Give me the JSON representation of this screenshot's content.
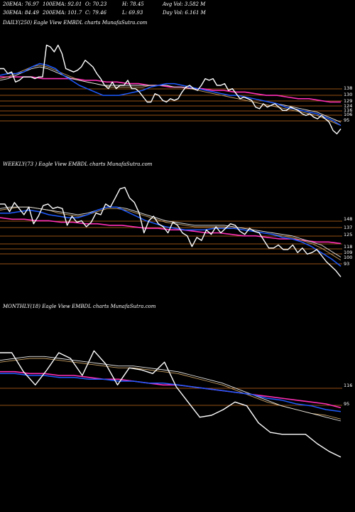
{
  "header": {
    "row1": [
      "20EMA: 76.97",
      "100EMA: 92.01",
      "O: 70.23",
      "H: 78.45",
      "Avg Vol: 3.582  M"
    ],
    "row2": [
      "30EMA: 84.49",
      "200EMA: 101.7",
      "C: 79.46",
      "L: 69.93",
      "Day Vol: 6.161  M"
    ]
  },
  "colors": {
    "background": "#000000",
    "price": "#ffffff",
    "ema_fast": "#1e5bff",
    "ema_slow": "#ff2fb5",
    "ema_gold": "#c8a064",
    "ema_white": "#e8e8e8",
    "level_line": "#c66a1c"
  },
  "chart_data": [
    {
      "type": "line",
      "title": "DAILY(250)  Eagle   View  EMBDL  charts MunafaSutra.com",
      "y_ticks": [
        "138",
        "130",
        "129",
        "124",
        "116",
        "106",
        "95"
      ],
      "series": [
        {
          "role": "price",
          "values": [
            136,
            136,
            133,
            134,
            128,
            129,
            131,
            131,
            131,
            130,
            131,
            131,
            150,
            149,
            146,
            150,
            145,
            136,
            135,
            134,
            135,
            137,
            141,
            139,
            137,
            133,
            130,
            126,
            124,
            128,
            124,
            126,
            126,
            129,
            124,
            124,
            122,
            119,
            116,
            116,
            121,
            120,
            117,
            116,
            118,
            117,
            118,
            122,
            125,
            126,
            124,
            123,
            126,
            130,
            129,
            130,
            126,
            126,
            127,
            123,
            124,
            121,
            118,
            119,
            118,
            117,
            113,
            112,
            115,
            113,
            114,
            115,
            113,
            111,
            111,
            113,
            112,
            111,
            109,
            108,
            109,
            107,
            106,
            108,
            106,
            104,
            99,
            97,
            100
          ]
        },
        {
          "role": "ema_fast",
          "values": [
            132,
            133,
            133,
            134,
            137,
            139,
            138,
            136,
            132,
            129,
            126,
            124,
            122,
            120,
            120,
            120,
            121,
            122,
            123,
            125,
            126,
            127,
            127,
            126,
            125,
            124,
            123,
            122,
            121,
            120,
            120,
            119,
            118,
            117,
            116,
            115,
            113,
            112,
            111,
            110,
            109,
            107,
            105,
            102
          ]
        },
        {
          "role": "ema_slow",
          "values": [
            131,
            131,
            131,
            131,
            130,
            130,
            130,
            130,
            129,
            129,
            128,
            128,
            127,
            127,
            126,
            126,
            125,
            125,
            124,
            124,
            123,
            123,
            122,
            122,
            121,
            120,
            120,
            119,
            118,
            118,
            117,
            116,
            116
          ]
        },
        {
          "role": "ema_gold",
          "values": [
            130,
            131,
            133,
            135,
            137,
            138,
            137,
            135,
            133,
            131,
            129,
            128,
            127,
            126,
            125,
            125,
            125,
            125,
            125,
            126,
            126,
            126,
            125,
            125,
            124,
            123,
            122,
            121,
            120,
            119,
            118,
            117,
            116,
            115,
            114,
            113,
            112,
            111,
            110,
            109,
            108,
            106,
            104,
            102
          ]
        },
        {
          "role": "ema_white",
          "values": [
            129,
            130,
            132,
            134,
            136,
            137,
            136,
            134,
            132,
            130,
            129,
            128,
            127,
            126,
            126,
            126,
            126,
            126,
            126,
            126,
            126,
            126,
            125,
            125,
            124,
            124,
            123,
            122,
            121,
            120,
            120,
            119,
            118,
            117,
            116,
            115,
            114,
            113,
            112,
            111,
            110,
            108,
            106,
            104
          ]
        }
      ]
    },
    {
      "type": "line",
      "title": "WEEKLY(73                              )  Eagle   View  EMBDL  charts MunafaSutra.com",
      "y_ticks": [
        "148",
        "137",
        "125",
        "118",
        "109",
        "100",
        "93"
      ],
      "series": [
        {
          "role": "price",
          "values": [
            133,
            133,
            128,
            134,
            130,
            126,
            131,
            120,
            125,
            132,
            133,
            130,
            131,
            130,
            119,
            125,
            121,
            122,
            118,
            121,
            127,
            126,
            133,
            131,
            137,
            143,
            144,
            137,
            134,
            127,
            114,
            122,
            125,
            120,
            118,
            114,
            121,
            119,
            114,
            112,
            105,
            111,
            109,
            116,
            113,
            118,
            114,
            117,
            120,
            119,
            115,
            113,
            117,
            115,
            114,
            109,
            104,
            104,
            106,
            103,
            103,
            106,
            101,
            104,
            100,
            101,
            103,
            99,
            95,
            92,
            89,
            85
          ]
        },
        {
          "role": "ema_fast",
          "values": [
            127,
            127,
            128,
            129,
            128,
            126,
            125,
            124,
            124,
            126,
            129,
            131,
            131,
            128,
            125,
            122,
            120,
            118,
            117,
            116,
            116,
            116,
            117,
            117,
            117,
            116,
            115,
            114,
            113,
            111,
            110,
            108,
            105,
            101,
            97,
            92
          ]
        },
        {
          "role": "ema_slow",
          "values": [
            124,
            123,
            123,
            122,
            122,
            121,
            121,
            120,
            120,
            119,
            119,
            118,
            117,
            117,
            116,
            116,
            115,
            114,
            114,
            113,
            112,
            112,
            111,
            110,
            110,
            109,
            108,
            108,
            107
          ]
        },
        {
          "role": "ema_gold",
          "values": [
            129,
            130,
            131,
            131,
            130,
            129,
            127,
            126,
            125,
            126,
            128,
            130,
            130,
            129,
            127,
            125,
            123,
            121,
            120,
            119,
            118,
            118,
            118,
            118,
            117,
            116,
            115,
            114,
            113,
            112,
            111,
            109,
            107,
            104,
            100,
            96
          ]
        },
        {
          "role": "ema_white",
          "values": [
            130,
            131,
            131,
            131,
            130,
            129,
            128,
            127,
            126,
            127,
            129,
            131,
            131,
            130,
            128,
            126,
            124,
            122,
            121,
            120,
            119,
            119,
            119,
            119,
            118,
            117,
            116,
            115,
            114,
            113,
            112,
            110,
            108,
            106,
            102,
            98
          ]
        }
      ]
    },
    {
      "type": "line",
      "title": "MONTHLY(18)  Eagle   View  EMBDL  charts MunafaSutra.com",
      "y_ticks": [
        "116",
        "95"
      ],
      "series": [
        {
          "role": "price",
          "values": [
            129,
            129,
            119,
            112,
            120,
            129,
            126,
            117,
            130,
            123,
            112,
            121,
            120,
            118,
            124,
            111,
            103,
            95,
            96,
            99,
            103,
            101,
            92,
            87,
            86,
            86,
            86,
            81,
            77,
            74
          ]
        },
        {
          "role": "ema_fast",
          "values": [
            118,
            118,
            117,
            117,
            116,
            116,
            115,
            115,
            114,
            114,
            113,
            113,
            112,
            111,
            110,
            109,
            108,
            107,
            105,
            104,
            102,
            101,
            99,
            98
          ]
        },
        {
          "role": "ema_slow",
          "values": [
            119,
            119,
            118,
            118,
            117,
            117,
            116,
            115,
            115,
            114,
            113,
            112,
            112,
            111,
            110,
            109,
            108,
            107,
            106,
            105,
            104,
            103,
            102,
            100
          ]
        },
        {
          "role": "ema_gold",
          "values": [
            124,
            125,
            126,
            126,
            125,
            124,
            123,
            122,
            121,
            121,
            120,
            119,
            118,
            116,
            114,
            112,
            109,
            106,
            103,
            101,
            99,
            97,
            96,
            94
          ]
        },
        {
          "role": "ema_white",
          "values": [
            125,
            126,
            127,
            127,
            126,
            125,
            124,
            123,
            122,
            122,
            121,
            120,
            119,
            117,
            115,
            113,
            110,
            107,
            104,
            101,
            99,
            97,
            95,
            93
          ]
        }
      ]
    }
  ]
}
